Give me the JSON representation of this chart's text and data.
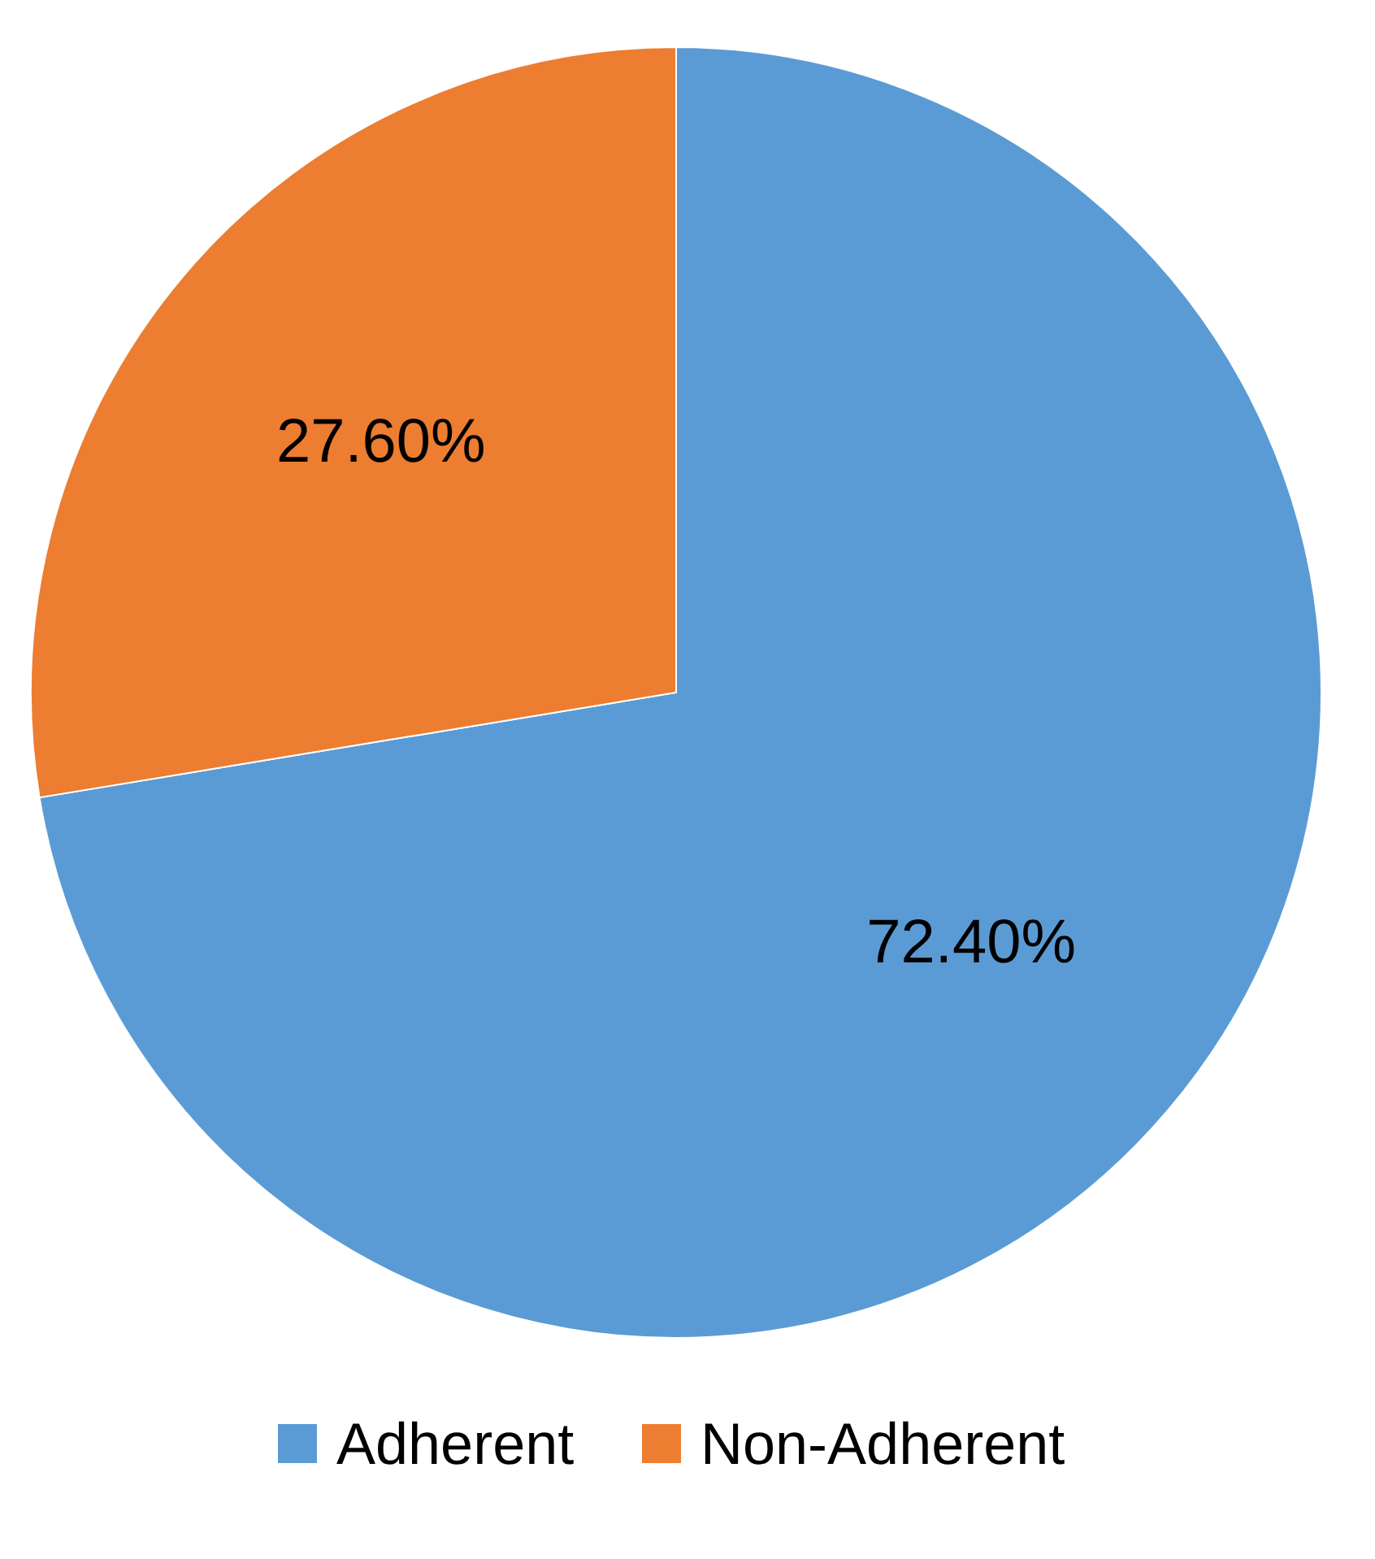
{
  "chart_data": {
    "type": "pie",
    "categories": [
      "Adherent",
      "Non-Adherent"
    ],
    "values": [
      72.4,
      27.6
    ],
    "colors": [
      "#5b9bd5",
      "#ed7d31"
    ],
    "value_labels": [
      "72.40%",
      "27.60%"
    ],
    "legend": "bottom"
  }
}
